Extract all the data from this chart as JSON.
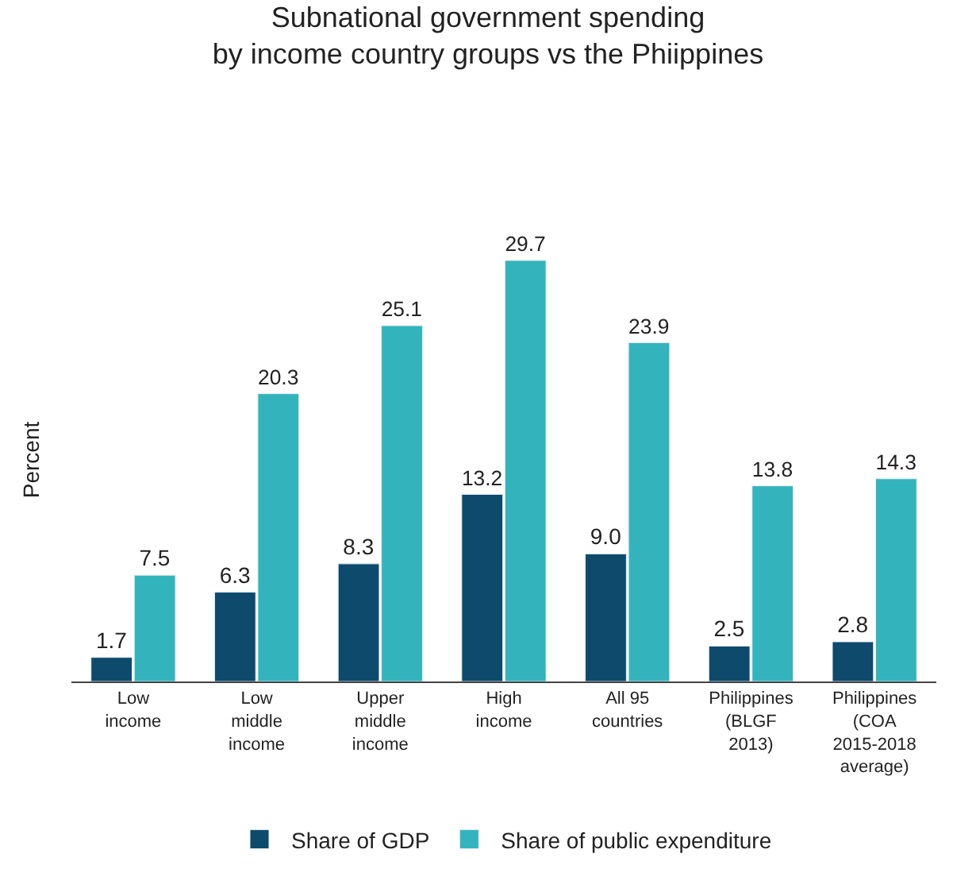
{
  "chart_data": {
    "type": "bar",
    "title": "Subnational government spending\nby income country groups vs the Phiippines",
    "ylabel": "Percent",
    "categories": [
      "Low\nincome",
      "Low\nmiddle\nincome",
      "Upper\nmiddle\nincome",
      "High\nincome",
      "All 95\ncountries",
      "Philippines\n(BLGF\n2013)",
      "Philippines\n(COA\n2015-2018\naverage)"
    ],
    "series": [
      {
        "name": "Share of GDP",
        "color": "#0d4a6b",
        "values": [
          1.7,
          6.3,
          8.3,
          13.2,
          9.0,
          2.5,
          2.8
        ],
        "value_labels": [
          "1.7",
          "6.3",
          "8.3",
          "13.2",
          "9.0",
          "2.5",
          "2.8"
        ]
      },
      {
        "name": "Share of public expenditure",
        "color": "#33b4bc",
        "values": [
          7.5,
          20.3,
          25.1,
          29.7,
          23.9,
          13.8,
          14.3
        ],
        "value_labels": [
          "7.5",
          "20.3",
          "25.1",
          "29.7",
          "23.9",
          "13.8",
          "14.3"
        ]
      }
    ],
    "legend": "bottom"
  }
}
